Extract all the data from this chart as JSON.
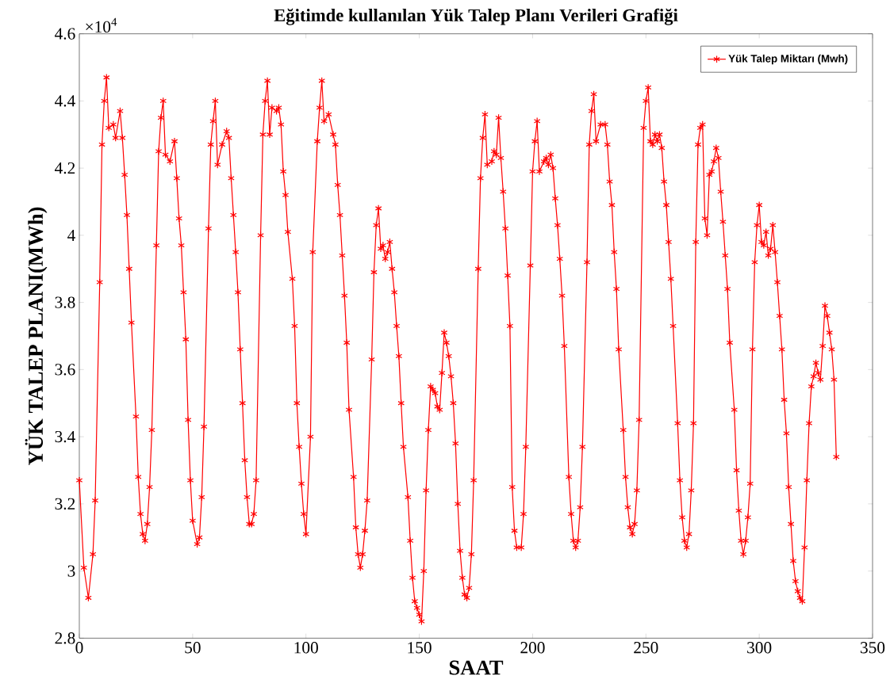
{
  "chart_data": {
    "type": "line",
    "title": "Eğitimde kullanılan Yük Talep Planı Verileri Grafiği",
    "xlabel": "SAAT",
    "ylabel": "YÜK TALEP PLANI(MWh)",
    "annotations": [
      "×10$^{4}$"
    ],
    "xlim": [
      0,
      350
    ],
    "xticks": [
      0,
      50,
      100,
      150,
      200,
      250,
      300,
      350
    ],
    "ylim": [
      2.8,
      4.6
    ],
    "yticks": [
      2.8,
      3,
      3.2,
      3.4,
      3.6,
      3.8,
      4,
      4.2,
      4.4,
      4.6
    ],
    "legend": "top right",
    "marker": "cross",
    "line_style": "solid",
    "grid": false,
    "series": [
      {
        "name": "Yük Talep Miktarı (Mwh)",
        "color": "#ff0000",
        "x": [
          0,
          2,
          4,
          6,
          7,
          9,
          10,
          11,
          12,
          13,
          15,
          16,
          18,
          19,
          20,
          21,
          22,
          23,
          25,
          26,
          27,
          28,
          29,
          30,
          31,
          32,
          34,
          35,
          36,
          37,
          38,
          40,
          42,
          43,
          44,
          45,
          46,
          47,
          48,
          49,
          50,
          52,
          53,
          54,
          55,
          57,
          58,
          59,
          60,
          61,
          63,
          65,
          66,
          67,
          68,
          69,
          70,
          71,
          72,
          73,
          74,
          75,
          76,
          77,
          78,
          80,
          81,
          82,
          83,
          84,
          85,
          87,
          88,
          89,
          90,
          91,
          92,
          94,
          95,
          96,
          97,
          98,
          99,
          100,
          102,
          103,
          105,
          106,
          107,
          108,
          110,
          112,
          113,
          114,
          115,
          116,
          117,
          118,
          119,
          121,
          122,
          123,
          124,
          125,
          126,
          127,
          129,
          130,
          131,
          132,
          133,
          134,
          135,
          136,
          137,
          138,
          139,
          140,
          141,
          142,
          143,
          145,
          146,
          147,
          148,
          149,
          150,
          151,
          152,
          153,
          154,
          155,
          156,
          157,
          158,
          159,
          160,
          161,
          162,
          163,
          164,
          165,
          166,
          167,
          168,
          169,
          170,
          171,
          172,
          173,
          174,
          176,
          177,
          178,
          179,
          180,
          182,
          183,
          184,
          185,
          186,
          187,
          188,
          189,
          190,
          191,
          192,
          193,
          195,
          196,
          197,
          199,
          200,
          201,
          202,
          203,
          205,
          206,
          207,
          208,
          209,
          210,
          211,
          212,
          213,
          214,
          216,
          217,
          218,
          219,
          220,
          221,
          222,
          224,
          225,
          226,
          227,
          228,
          230,
          232,
          233,
          234,
          235,
          236,
          237,
          238,
          240,
          241,
          242,
          243,
          244,
          245,
          246,
          247,
          249,
          250,
          251,
          252,
          253,
          254,
          255,
          256,
          257,
          258,
          259,
          260,
          261,
          262,
          264,
          265,
          266,
          267,
          268,
          269,
          270,
          271,
          272,
          273,
          274,
          275,
          276,
          277,
          278,
          279,
          280,
          281,
          282,
          283,
          284,
          285,
          286,
          287,
          289,
          290,
          291,
          292,
          293,
          294,
          295,
          296,
          297,
          298,
          299,
          300,
          301,
          302,
          303,
          304,
          305,
          306,
          307,
          308,
          309,
          310,
          311,
          312,
          313,
          314,
          315,
          316,
          317,
          318,
          319,
          320,
          321,
          322,
          323,
          324,
          325,
          326,
          327,
          328,
          329,
          330,
          331,
          332,
          333,
          334
        ],
        "values": [
          3.27,
          3.01,
          2.92,
          3.05,
          3.21,
          3.86,
          4.27,
          4.4,
          4.47,
          4.32,
          4.33,
          4.29,
          4.37,
          4.29,
          4.18,
          4.06,
          3.9,
          3.74,
          3.46,
          3.28,
          3.17,
          3.11,
          3.09,
          3.14,
          3.25,
          3.42,
          3.97,
          4.25,
          4.35,
          4.4,
          4.24,
          4.22,
          4.28,
          4.17,
          4.05,
          3.97,
          3.83,
          3.69,
          3.45,
          3.27,
          3.15,
          3.08,
          3.1,
          3.22,
          3.43,
          4.02,
          4.27,
          4.34,
          4.4,
          4.21,
          4.27,
          4.31,
          4.29,
          4.17,
          4.06,
          3.95,
          3.83,
          3.66,
          3.5,
          3.33,
          3.22,
          3.14,
          3.14,
          3.17,
          3.27,
          4.0,
          4.3,
          4.4,
          4.46,
          4.3,
          4.38,
          4.37,
          4.38,
          4.33,
          4.19,
          4.12,
          4.01,
          3.87,
          3.73,
          3.5,
          3.37,
          3.26,
          3.17,
          3.11,
          3.4,
          3.95,
          4.28,
          4.38,
          4.46,
          4.34,
          4.36,
          4.3,
          4.27,
          4.15,
          4.06,
          3.94,
          3.82,
          3.68,
          3.48,
          3.28,
          3.13,
          3.05,
          3.01,
          3.05,
          3.12,
          3.21,
          3.63,
          3.89,
          4.03,
          4.08,
          3.96,
          3.97,
          3.93,
          3.95,
          3.98,
          3.9,
          3.83,
          3.73,
          3.64,
          3.5,
          3.37,
          3.22,
          3.09,
          2.98,
          2.91,
          2.89,
          2.87,
          2.85,
          3.0,
          3.24,
          3.42,
          3.55,
          3.54,
          3.53,
          3.49,
          3.48,
          3.59,
          3.71,
          3.68,
          3.64,
          3.58,
          3.5,
          3.38,
          3.2,
          3.06,
          2.98,
          2.93,
          2.92,
          2.95,
          3.05,
          3.27,
          3.9,
          4.17,
          4.29,
          4.36,
          4.21,
          4.22,
          4.25,
          4.24,
          4.35,
          4.23,
          4.13,
          4.02,
          3.88,
          3.73,
          3.25,
          3.12,
          3.07,
          3.07,
          3.17,
          3.37,
          3.91,
          4.19,
          4.28,
          4.34,
          4.19,
          4.22,
          4.23,
          4.21,
          4.24,
          4.2,
          4.11,
          4.03,
          3.93,
          3.82,
          3.67,
          3.28,
          3.17,
          3.09,
          3.07,
          3.09,
          3.19,
          3.37,
          3.92,
          4.27,
          4.37,
          4.42,
          4.28,
          4.33,
          4.33,
          4.27,
          4.16,
          4.09,
          3.95,
          3.84,
          3.66,
          3.42,
          3.28,
          3.19,
          3.13,
          3.11,
          3.14,
          3.24,
          3.45,
          4.32,
          4.4,
          4.44,
          4.28,
          4.27,
          4.3,
          4.28,
          4.3,
          4.26,
          4.16,
          4.09,
          3.98,
          3.87,
          3.73,
          3.44,
          3.27,
          3.16,
          3.09,
          3.07,
          3.11,
          3.24,
          3.44,
          3.98,
          4.27,
          4.32,
          4.33,
          4.05,
          4.0,
          4.18,
          4.19,
          4.22,
          4.26,
          4.23,
          4.13,
          4.04,
          3.94,
          3.84,
          3.68,
          3.48,
          3.3,
          3.18,
          3.09,
          3.05,
          3.09,
          3.16,
          3.26,
          3.66,
          3.92,
          4.03,
          4.09,
          3.98,
          3.97,
          4.01,
          3.94,
          3.96,
          4.03,
          3.95,
          3.86,
          3.76,
          3.66,
          3.51,
          3.41,
          3.25,
          3.14,
          3.03,
          2.97,
          2.94,
          2.92,
          2.91,
          3.07,
          3.27,
          3.44,
          3.55,
          3.58,
          3.62,
          3.59,
          3.57,
          3.67,
          3.79,
          3.76,
          3.71,
          3.66,
          3.57,
          3.34
        ]
      }
    ]
  }
}
